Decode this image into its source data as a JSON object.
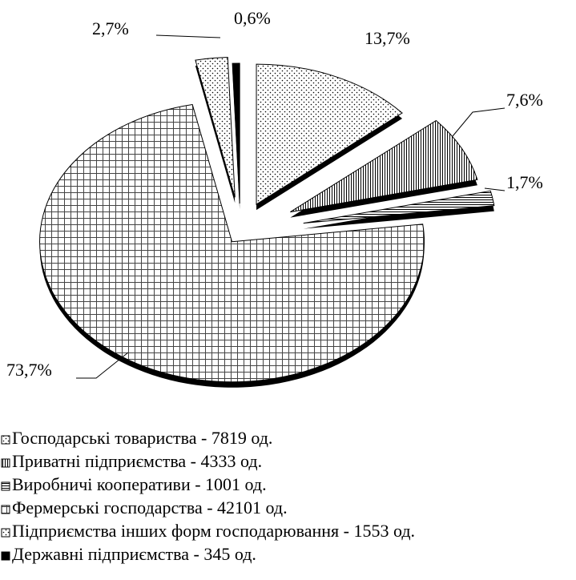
{
  "chart_data": {
    "type": "pie",
    "series": [
      {
        "name": "Господарські товариства - 7819 од.",
        "pattern": "dots"
      },
      {
        "name": "Приватні підприємства - 4333 од.",
        "pattern": "vlines"
      },
      {
        "name": "Виробничі кооперативи - 1001 од.",
        "pattern": "hlines"
      },
      {
        "name": "Фермерські господарства - 42101 од.",
        "pattern": "grid"
      },
      {
        "name": "Підприємства інших форм господарювання - 1553 од.",
        "pattern": "dots"
      },
      {
        "name": "Державні підприємства - 345 од.",
        "pattern": "solid"
      }
    ],
    "values": [
      13.7,
      7.6,
      1.7,
      73.7,
      2.7,
      0.6
    ],
    "value_labels": [
      "13,7%",
      "7,6%",
      "1,7%",
      "73,7%",
      "2,7%",
      "0,6%"
    ],
    "legend": "bottom-left"
  }
}
